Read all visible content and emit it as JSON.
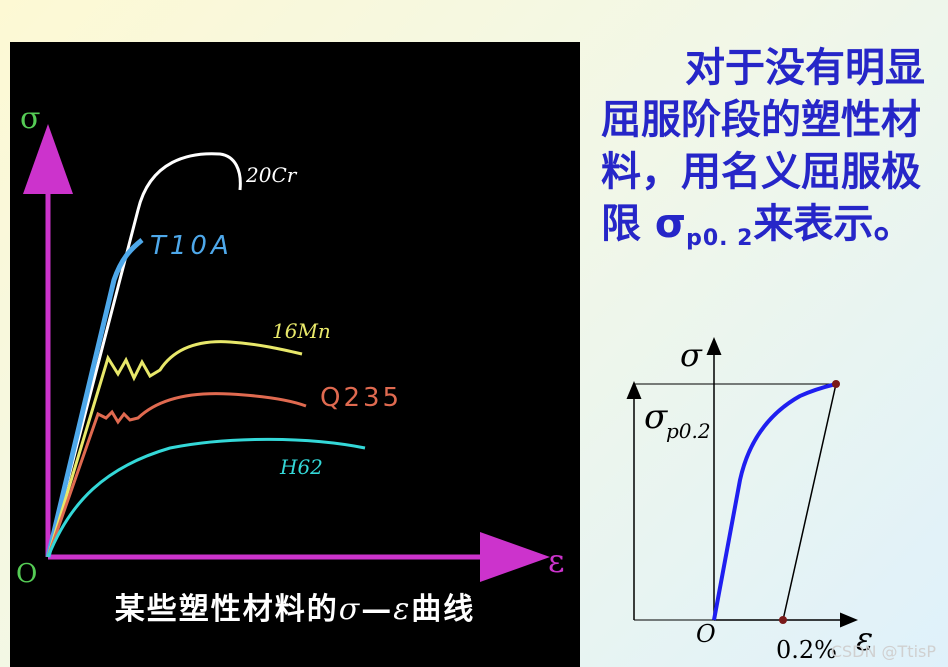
{
  "left_chart": {
    "y_axis_label": "σ",
    "x_axis_label": "ε",
    "origin_label": "O",
    "caption_prefix": "某些塑性材料的",
    "caption_sigma": "σ",
    "caption_dash": "—",
    "caption_eps": "ε",
    "caption_suffix": "曲线",
    "curves": [
      {
        "label": "20Cr",
        "color": "#ffffff"
      },
      {
        "label": "T10A",
        "color": "#4ea8ea"
      },
      {
        "label": "16Mn",
        "color": "#e8e86a"
      },
      {
        "label": "Q235",
        "color": "#e06a50"
      },
      {
        "label": "H62",
        "color": "#34d8d8"
      }
    ],
    "colors": {
      "axis": "#cc33cc",
      "axis_label": "#55cc55"
    }
  },
  "description": {
    "line1": "对于没有明显屈服阶段的塑性材料，用名义屈服极限 σ",
    "subscript": "p0. 2",
    "line2": "来表示。"
  },
  "right_diagram": {
    "y_axis_label": "σ",
    "x_axis_label": "ε",
    "origin_label": "O",
    "yield_label_main": "σ",
    "yield_label_sub": "p0.2",
    "offset_label": "0.2%",
    "curve_color": "#1f1ff0"
  },
  "watermark": "CSDN @TtisP"
}
